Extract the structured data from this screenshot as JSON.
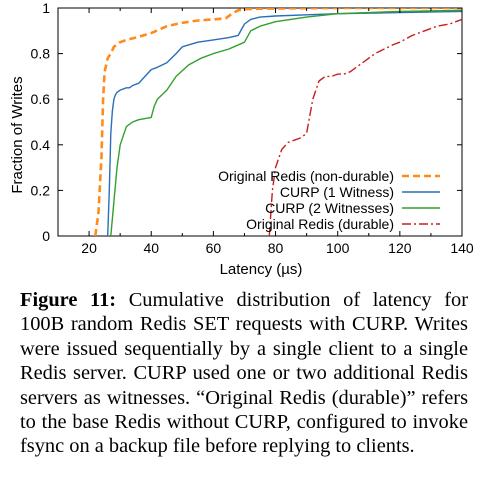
{
  "chart_data": {
    "type": "line",
    "xlabel": "Latency (µs)",
    "ylabel": "Fraction of Writes",
    "xlim": [
      10,
      140
    ],
    "ylim": [
      0,
      1
    ],
    "xticks": [
      20,
      40,
      60,
      80,
      100,
      120,
      140
    ],
    "yticks": [
      0,
      0.2,
      0.4,
      0.6,
      0.8,
      1
    ],
    "ytick_labels": [
      "0",
      "0.2",
      "0.4",
      "0.6",
      "0.8",
      "1"
    ],
    "grid": false,
    "legend_position": "bottom-right",
    "series": [
      {
        "name": "Original Redis (non-durable)",
        "color": "#ff8c1a",
        "dash": "dashed",
        "x": [
          22,
          23,
          24,
          24.5,
          25,
          26,
          27,
          28,
          30,
          32,
          35,
          40,
          45,
          50,
          55,
          60,
          64,
          66,
          68,
          70,
          75,
          80,
          90,
          100,
          120,
          140
        ],
        "y": [
          0,
          0.1,
          0.35,
          0.6,
          0.72,
          0.78,
          0.8,
          0.83,
          0.85,
          0.86,
          0.87,
          0.89,
          0.92,
          0.935,
          0.945,
          0.95,
          0.955,
          0.975,
          0.99,
          0.995,
          0.997,
          0.998,
          0.999,
          1.0,
          1.0,
          1.0
        ]
      },
      {
        "name": "CURP (1 Witness)",
        "color": "#2a6fb5",
        "dash": "solid",
        "x": [
          26,
          26.5,
          27,
          27.5,
          28,
          28.5,
          29,
          30,
          32,
          33,
          34,
          36,
          38,
          40,
          42,
          45,
          48,
          50,
          55,
          60,
          65,
          68,
          70,
          72,
          75,
          80,
          90,
          100,
          120,
          140
        ],
        "y": [
          0,
          0.2,
          0.45,
          0.55,
          0.6,
          0.62,
          0.63,
          0.64,
          0.65,
          0.65,
          0.66,
          0.67,
          0.7,
          0.73,
          0.74,
          0.76,
          0.8,
          0.83,
          0.85,
          0.86,
          0.87,
          0.88,
          0.93,
          0.95,
          0.96,
          0.965,
          0.97,
          0.975,
          0.98,
          0.985
        ]
      },
      {
        "name": "CURP (2 Witnesses)",
        "color": "#33a02c",
        "dash": "solid",
        "x": [
          27,
          28,
          29,
          30,
          31,
          32,
          34,
          36,
          38,
          40,
          41,
          42,
          45,
          48,
          52,
          56,
          60,
          65,
          70,
          72,
          75,
          80,
          90,
          100,
          120,
          140
        ],
        "y": [
          0,
          0.15,
          0.3,
          0.4,
          0.44,
          0.48,
          0.5,
          0.51,
          0.515,
          0.52,
          0.57,
          0.6,
          0.64,
          0.7,
          0.75,
          0.78,
          0.8,
          0.82,
          0.85,
          0.9,
          0.92,
          0.94,
          0.96,
          0.975,
          0.985,
          0.99
        ]
      },
      {
        "name": "Original Redis (durable)",
        "color": "#c81e1e",
        "dash": "dashdot",
        "x": [
          78,
          79,
          80,
          82,
          84,
          86,
          88,
          90,
          92,
          94,
          96,
          98,
          100,
          102,
          104,
          106,
          108,
          110,
          112,
          115,
          118,
          120,
          124,
          128,
          132,
          136,
          140
        ],
        "y": [
          0,
          0.2,
          0.3,
          0.38,
          0.41,
          0.42,
          0.43,
          0.45,
          0.6,
          0.68,
          0.7,
          0.7,
          0.71,
          0.71,
          0.72,
          0.74,
          0.76,
          0.78,
          0.8,
          0.82,
          0.84,
          0.85,
          0.88,
          0.9,
          0.92,
          0.93,
          0.95
        ]
      }
    ]
  },
  "caption": {
    "label": "Figure 11:",
    "text": " Cumulative distribution of latency for 100B random Redis SET requests with CURP. Writes were issued sequentially by a single client to a single Redis server. CURP used one or two additional Redis servers as witnesses. “Original Redis (durable)” refers to the base Redis without CURP, configured to invoke fsync on a backup file before replying to clients."
  }
}
